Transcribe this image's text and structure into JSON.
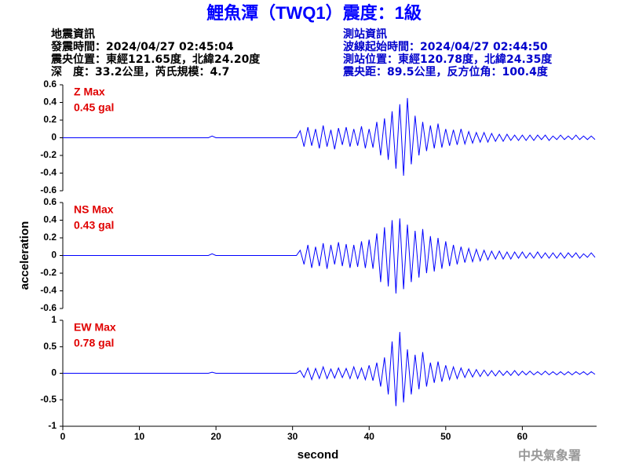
{
  "title": "鯉魚潭（TWQ1）震度：1級",
  "event_info": [
    "地震資訊",
    "發震時間：2024/04/27 02:45:04",
    "震央位置：東經121.65度，北緯24.20度",
    "深　度：33.2公里，芮氏規模：4.7"
  ],
  "station_info": [
    "測站資訊",
    "波線起始時間：2024/04/27 02:44:50",
    "測站位置：東經120.78度，北緯24.35度",
    "震央距：89.5公里，反方位角：100.4度"
  ],
  "footer": "中央氣象署",
  "chart_data": [
    {
      "type": "line",
      "label": "Z Max",
      "max_label": "0.45 gal",
      "color": "#0000ff",
      "xlim": [
        0,
        69.7
      ],
      "ylim": [
        -0.6,
        0.6
      ],
      "yticks": [
        0.6,
        0.4,
        0.2,
        0,
        -0.2,
        -0.4,
        -0.6
      ],
      "x": [
        0,
        10,
        19,
        19.5,
        20,
        30,
        30.5,
        31,
        31.5,
        32,
        32.5,
        33,
        33.5,
        34,
        34.5,
        35,
        35.5,
        36,
        36.5,
        37,
        37.5,
        38,
        38.5,
        39,
        39.5,
        40,
        40.5,
        41,
        41.5,
        42,
        42.5,
        43,
        43.5,
        44,
        44.5,
        45,
        45.5,
        46,
        46.5,
        47,
        47.5,
        48,
        48.5,
        49,
        49.5,
        50,
        50.5,
        51,
        51.5,
        52,
        52.5,
        53,
        53.5,
        54,
        54.5,
        55,
        55.5,
        56,
        56.5,
        57,
        57.5,
        58,
        58.5,
        59,
        59.5,
        60,
        60.5,
        61,
        61.5,
        62,
        62.5,
        63,
        63.5,
        64,
        64.5,
        65,
        65.5,
        66,
        66.5,
        67,
        67.5,
        68,
        68.5,
        69,
        69.5
      ],
      "values": [
        0,
        0,
        0,
        0.02,
        0,
        0,
        0,
        0.08,
        -0.1,
        0.12,
        -0.09,
        0.1,
        -0.12,
        0.14,
        -0.1,
        0.09,
        -0.13,
        0.11,
        -0.08,
        0.12,
        -0.1,
        0.1,
        -0.09,
        0.13,
        -0.12,
        0.1,
        -0.11,
        0.18,
        -0.2,
        0.22,
        -0.25,
        0.3,
        -0.35,
        0.38,
        -0.43,
        0.45,
        -0.3,
        0.25,
        -0.2,
        0.18,
        -0.15,
        0.14,
        -0.12,
        0.16,
        -0.11,
        0.1,
        -0.09,
        0.09,
        -0.08,
        0.1,
        -0.07,
        0.07,
        -0.06,
        0.06,
        -0.05,
        0.06,
        -0.05,
        0.05,
        -0.04,
        0.04,
        -0.04,
        0.04,
        -0.03,
        0.03,
        -0.03,
        0.03,
        -0.03,
        0.03,
        -0.03,
        0.03,
        -0.02,
        0.03,
        -0.03,
        0.02,
        -0.02,
        0.03,
        -0.02,
        0.02,
        -0.02,
        0.03,
        -0.02,
        0.02,
        -0.02,
        0.02,
        -0.02
      ]
    },
    {
      "type": "line",
      "label": "NS Max",
      "max_label": "0.43 gal",
      "color": "#0000ff",
      "ylabel": "acceleration",
      "xlim": [
        0,
        69.7
      ],
      "ylim": [
        -0.6,
        0.6
      ],
      "yticks": [
        0.6,
        0.4,
        0.2,
        0,
        -0.2,
        -0.4,
        -0.6
      ],
      "x": [
        0,
        10,
        19,
        19.5,
        20,
        30,
        30.5,
        31,
        31.5,
        32,
        32.5,
        33,
        33.5,
        34,
        34.5,
        35,
        35.5,
        36,
        36.5,
        37,
        37.5,
        38,
        38.5,
        39,
        39.5,
        40,
        40.5,
        41,
        41.5,
        42,
        42.5,
        43,
        43.5,
        44,
        44.5,
        45,
        45.5,
        46,
        46.5,
        47,
        47.5,
        48,
        48.5,
        49,
        49.5,
        50,
        50.5,
        51,
        51.5,
        52,
        52.5,
        53,
        53.5,
        54,
        54.5,
        55,
        55.5,
        56,
        56.5,
        57,
        57.5,
        58,
        58.5,
        59,
        59.5,
        60,
        60.5,
        61,
        61.5,
        62,
        62.5,
        63,
        63.5,
        64,
        64.5,
        65,
        65.5,
        66,
        66.5,
        67,
        67.5,
        68,
        68.5,
        69,
        69.5
      ],
      "values": [
        0,
        0,
        0,
        0.02,
        0,
        0,
        0,
        0.06,
        -0.1,
        0.12,
        -0.14,
        0.1,
        -0.12,
        0.14,
        -0.15,
        0.12,
        -0.1,
        0.15,
        -0.12,
        0.13,
        -0.14,
        0.12,
        -0.13,
        0.16,
        -0.14,
        0.18,
        -0.15,
        0.25,
        -0.3,
        0.32,
        -0.35,
        0.4,
        -0.43,
        0.42,
        -0.38,
        0.35,
        -0.3,
        0.28,
        -0.25,
        0.3,
        -0.2,
        0.22,
        -0.18,
        0.2,
        -0.15,
        0.16,
        -0.12,
        0.12,
        -0.1,
        0.1,
        -0.08,
        0.08,
        -0.07,
        0.07,
        -0.06,
        0.06,
        -0.05,
        0.05,
        -0.04,
        0.05,
        -0.04,
        0.04,
        -0.04,
        0.04,
        -0.03,
        0.04,
        -0.03,
        0.03,
        -0.03,
        0.04,
        -0.03,
        0.03,
        -0.03,
        0.03,
        -0.03,
        0.03,
        -0.03,
        0.03,
        -0.02,
        0.03,
        -0.03,
        0.02,
        -0.02,
        0.03,
        -0.02
      ]
    },
    {
      "type": "line",
      "label": "EW Max",
      "max_label": "0.78 gal",
      "color": "#0000ff",
      "xlabel": "second",
      "xlim": [
        0,
        69.7
      ],
      "xticks": [
        0,
        10,
        20,
        30,
        40,
        50,
        60
      ],
      "ylim": [
        -1,
        1
      ],
      "yticks": [
        1,
        0.5,
        0,
        -0.5,
        -1
      ],
      "x": [
        0,
        10,
        19,
        19.5,
        20,
        30,
        30.5,
        31,
        31.5,
        32,
        32.5,
        33,
        33.5,
        34,
        34.5,
        35,
        35.5,
        36,
        36.5,
        37,
        37.5,
        38,
        38.5,
        39,
        39.5,
        40,
        40.5,
        41,
        41.5,
        42,
        42.5,
        43,
        43.5,
        44,
        44.5,
        45,
        45.5,
        46,
        46.5,
        47,
        47.5,
        48,
        48.5,
        49,
        49.5,
        50,
        50.5,
        51,
        51.5,
        52,
        52.5,
        53,
        53.5,
        54,
        54.5,
        55,
        55.5,
        56,
        56.5,
        57,
        57.5,
        58,
        58.5,
        59,
        59.5,
        60,
        60.5,
        61,
        61.5,
        62,
        62.5,
        63,
        63.5,
        64,
        64.5,
        65,
        65.5,
        66,
        66.5,
        67,
        67.5,
        68,
        68.5,
        69,
        69.5
      ],
      "values": [
        0,
        0,
        0,
        0.02,
        0,
        0,
        0,
        0.05,
        -0.08,
        0.1,
        -0.12,
        0.09,
        -0.1,
        0.12,
        -0.1,
        0.08,
        -0.09,
        0.1,
        -0.08,
        0.09,
        -0.1,
        0.12,
        -0.1,
        0.1,
        -0.12,
        0.15,
        -0.14,
        0.2,
        -0.25,
        0.3,
        -0.4,
        0.6,
        -0.62,
        0.78,
        -0.55,
        0.45,
        -0.4,
        0.35,
        -0.3,
        0.4,
        -0.25,
        0.2,
        -0.18,
        0.22,
        -0.16,
        0.15,
        -0.12,
        0.12,
        -0.1,
        0.1,
        -0.08,
        0.08,
        -0.07,
        0.07,
        -0.06,
        0.06,
        -0.05,
        0.05,
        -0.05,
        0.05,
        -0.04,
        0.04,
        -0.04,
        0.05,
        -0.04,
        0.04,
        -0.03,
        0.04,
        -0.03,
        0.03,
        -0.03,
        0.04,
        -0.03,
        0.03,
        -0.03,
        0.03,
        -0.03,
        0.03,
        -0.03,
        0.03,
        -0.02,
        0.03,
        -0.03,
        0.03,
        -0.02
      ]
    }
  ]
}
